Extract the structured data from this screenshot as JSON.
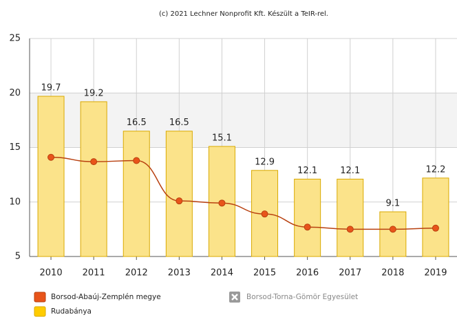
{
  "chart_data": {
    "type": "bar",
    "title": "(c) 2021 Lechner Nonprofit Kft. Készült a TeIR-rel.",
    "categories": [
      "2010",
      "2011",
      "2012",
      "2013",
      "2014",
      "2015",
      "2016",
      "2017",
      "2018",
      "2019"
    ],
    "series": [
      {
        "name": "Borsod-Abaúj-Zemplén megye",
        "type": "line",
        "color": "#e8541a",
        "line_color": "#b8400f",
        "values": [
          14.1,
          13.7,
          13.8,
          10.1,
          9.9,
          8.9,
          7.7,
          7.5,
          7.5,
          7.6
        ]
      },
      {
        "name": "Rudabánya",
        "type": "bar",
        "color": "#ffcc00",
        "fill": "#fbe38a",
        "stroke": "#d9a900",
        "values": [
          19.7,
          19.2,
          16.5,
          16.5,
          15.1,
          12.9,
          12.1,
          12.1,
          9.1,
          12.2
        ]
      }
    ],
    "legend_disabled": [
      "Borsod-Torna-Gömör Egyesület"
    ],
    "ylim": [
      5,
      25
    ],
    "yticks": [
      5,
      10,
      15,
      20,
      25
    ],
    "grid": true
  }
}
